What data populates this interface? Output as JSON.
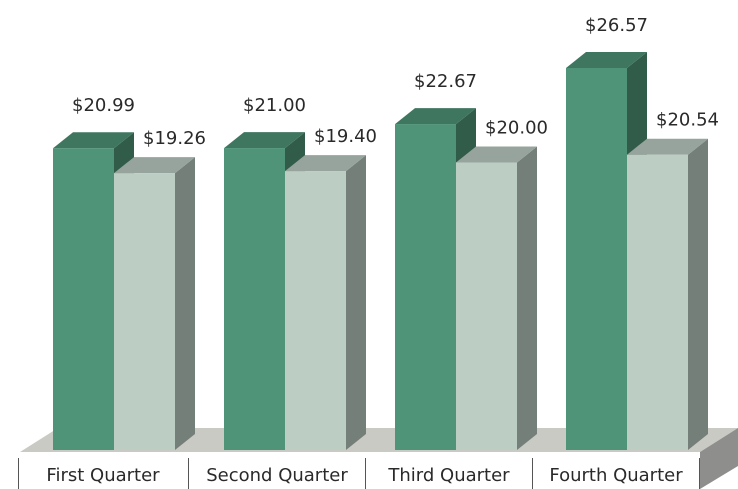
{
  "chart_data": {
    "type": "bar3d",
    "categories": [
      "First Quarter",
      "Second Quarter",
      "Third Quarter",
      "Fourth Quarter"
    ],
    "series": [
      {
        "color": "#4f9478",
        "values": [
          20.99,
          21.0,
          22.67,
          26.57
        ],
        "value_labels": [
          "$20.99",
          "$21.00",
          "$22.67",
          "$26.57"
        ]
      },
      {
        "color": "#bccdc4",
        "values": [
          19.26,
          19.4,
          20.0,
          20.54
        ],
        "value_labels": [
          "$19.26",
          "$19.40",
          "$20.00",
          "$20.54"
        ]
      }
    ]
  }
}
